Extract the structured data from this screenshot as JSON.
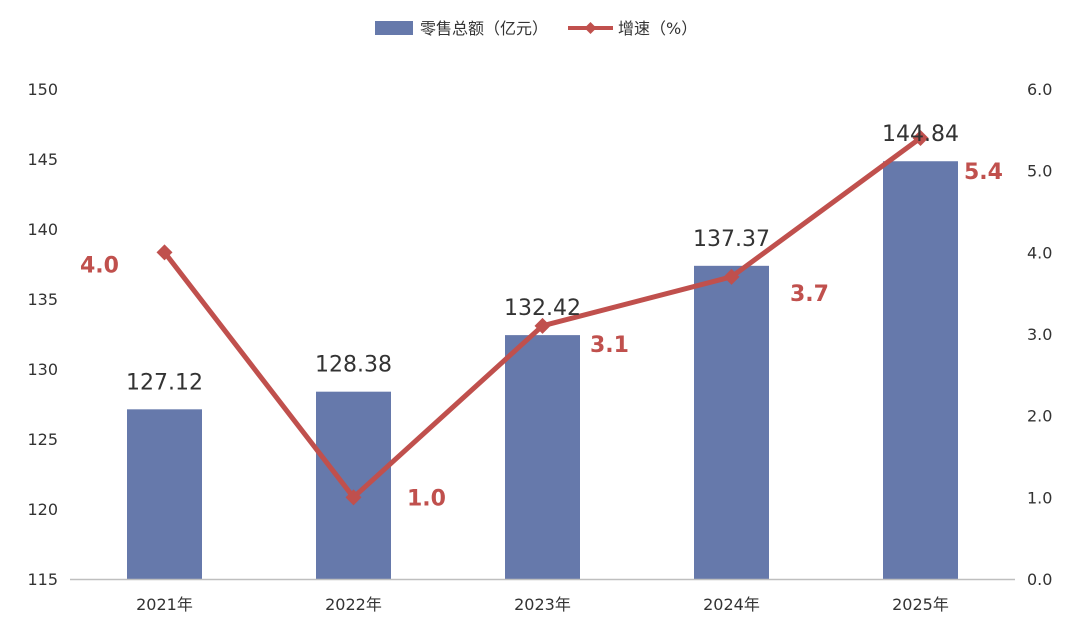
{
  "chart_data": {
    "type": "bar+line",
    "categories": [
      "2021年",
      "2022年",
      "2023年",
      "2024年",
      "2025年"
    ],
    "series": [
      {
        "name": "零售总额（亿元）",
        "type": "bar",
        "axis": "left",
        "values": [
          127.12,
          128.38,
          132.42,
          137.37,
          144.84
        ],
        "labels": [
          "127.12",
          "128.38",
          "132.42",
          "137.37",
          "144.84"
        ]
      },
      {
        "name": "增速（%）",
        "type": "line",
        "axis": "right",
        "values": [
          4.0,
          1.0,
          3.1,
          3.7,
          5.4
        ],
        "labels": [
          "4.0",
          "1.0",
          "3.1",
          "3.7",
          "5.4"
        ]
      }
    ],
    "y_left": {
      "min": 115,
      "max": 150,
      "ticks": [
        "115",
        "120",
        "125",
        "130",
        "135",
        "140",
        "145",
        "150"
      ]
    },
    "y_right": {
      "min": 0,
      "max": 6,
      "ticks": [
        "0.0",
        "1.0",
        "2.0",
        "3.0",
        "4.0",
        "5.0",
        "6.0"
      ]
    },
    "legend_position": "top-center",
    "grid": false,
    "colors": {
      "bar": "#6679ab",
      "line": "#c0504d",
      "axis": "#bfbfbf",
      "text": "#333333"
    }
  }
}
